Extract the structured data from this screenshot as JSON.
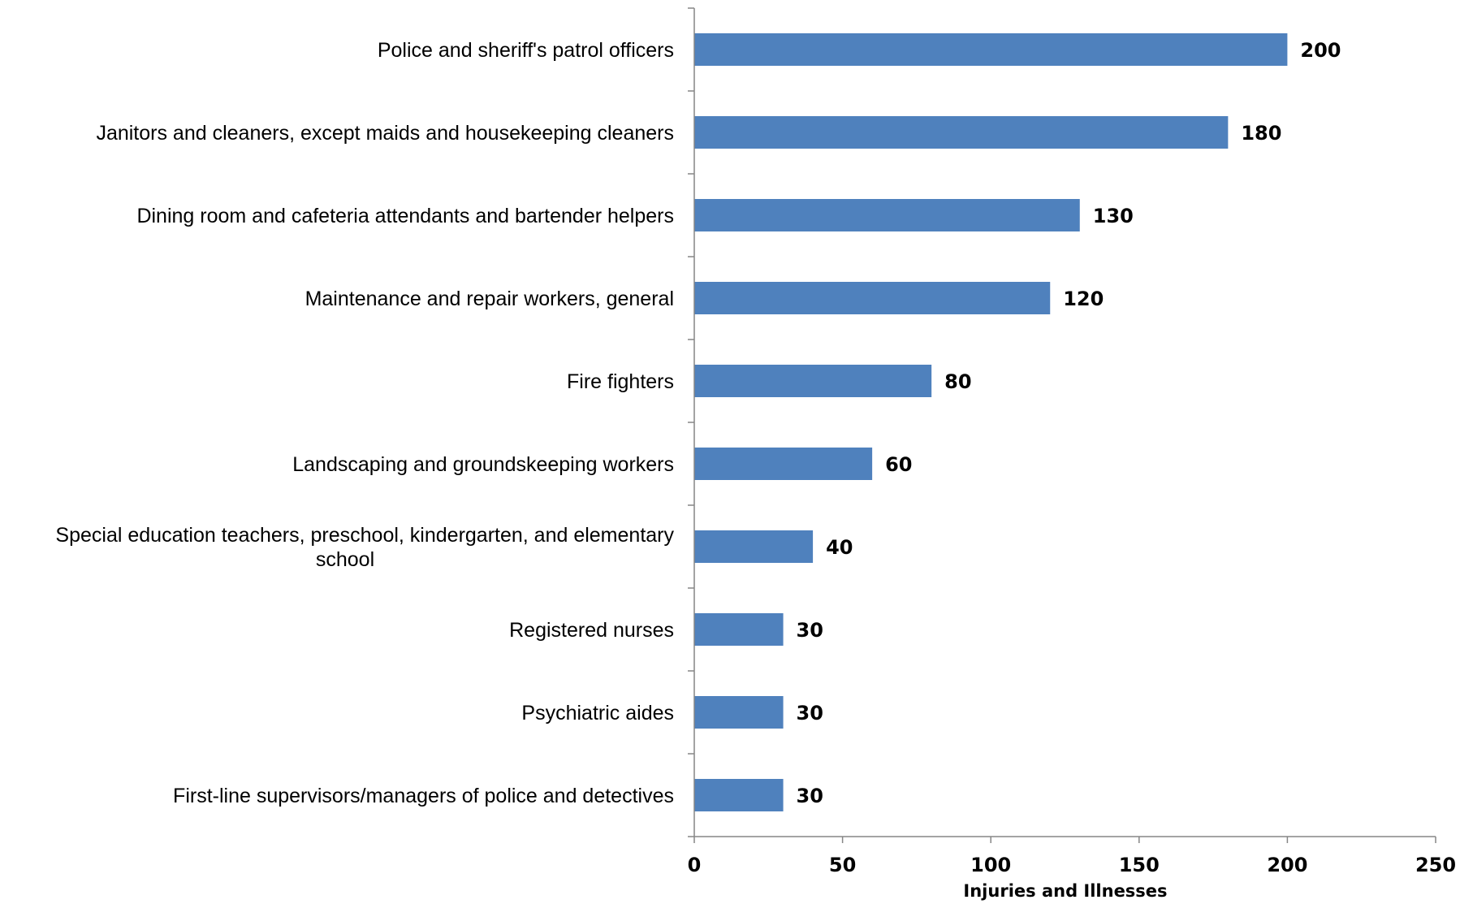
{
  "chart_data": {
    "type": "bar",
    "orientation": "horizontal",
    "categories": [
      [
        "Police and sheriff's patrol officers"
      ],
      [
        "Janitors and cleaners, except maids and housekeeping cleaners"
      ],
      [
        "Dining room and cafeteria attendants and bartender helpers"
      ],
      [
        "Maintenance and repair workers, general"
      ],
      [
        "Fire fighters"
      ],
      [
        "Landscaping and groundskeeping workers"
      ],
      [
        "Special education teachers, preschool, kindergarten, and elementary",
        "school"
      ],
      [
        "Registered nurses"
      ],
      [
        "Psychiatric aides"
      ],
      [
        "First-line supervisors/managers of police and detectives"
      ]
    ],
    "values": [
      200,
      180,
      130,
      120,
      80,
      60,
      40,
      30,
      30,
      30
    ],
    "data_labels": [
      "200",
      "180",
      "130",
      "120",
      "80",
      "60",
      "40",
      "30",
      "30",
      "30"
    ],
    "xlabel": "Injuries and Illnesses",
    "ylabel": "",
    "xlim": [
      0,
      250
    ],
    "x_ticks": [
      0,
      50,
      100,
      150,
      200,
      250
    ],
    "x_tick_labels": [
      "0",
      "50",
      "100",
      "150",
      "200",
      "250"
    ],
    "grid": false,
    "legend": "none",
    "bar_color": "#4F81BD",
    "axis_color": "#868686"
  }
}
